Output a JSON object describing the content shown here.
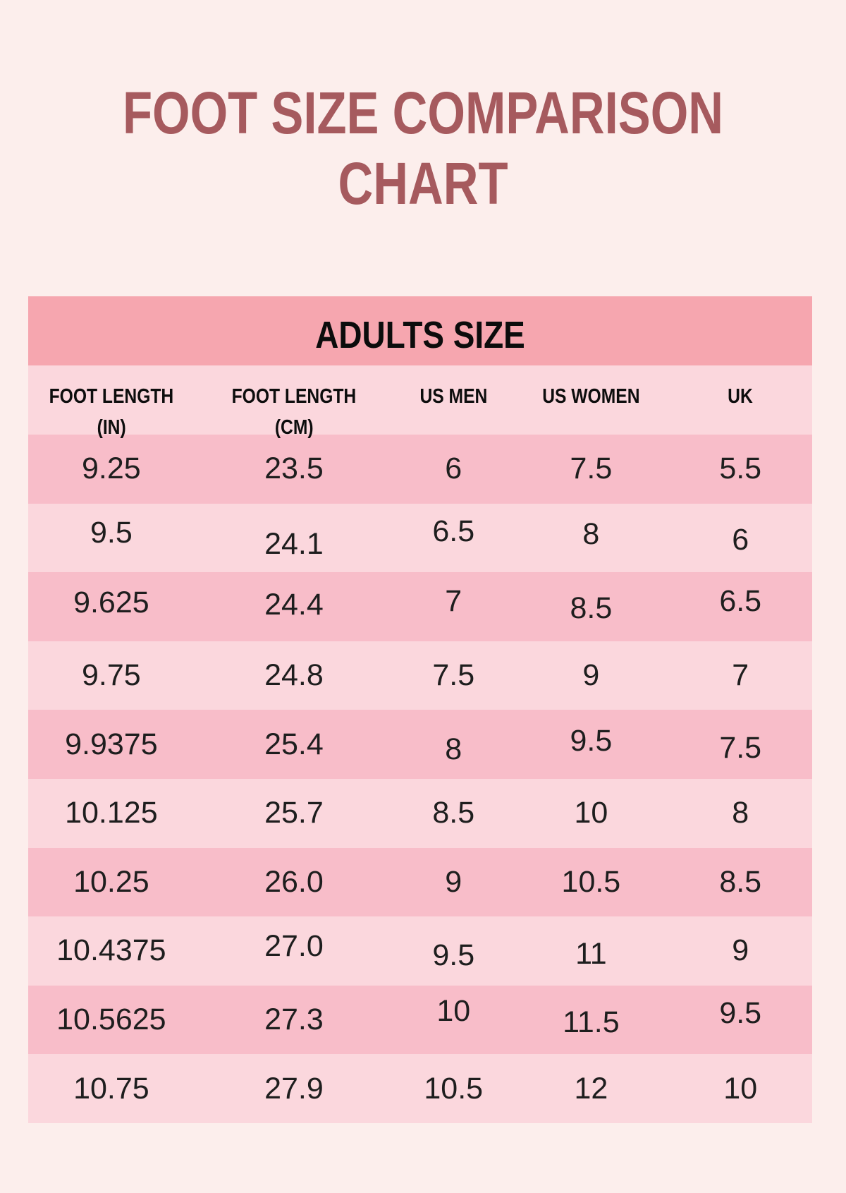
{
  "page": {
    "title_line1": "FOOT SIZE COMPARISON",
    "title_line2": "CHART"
  },
  "colors": {
    "page_background": "#FCEEEC",
    "title": "#A65A5E",
    "section_band": "#F6A6AF",
    "row_light": "#FBD7DD",
    "row_dark": "#F8BDC9",
    "header_text": "#0D0D0D",
    "data_text": "#1E1E1E"
  },
  "chart_data": {
    "type": "table",
    "title": "FOOT SIZE COMPARISON CHART",
    "section": "ADULTS SIZE",
    "columns": [
      {
        "label": "FOOT LENGTH",
        "unit": "(IN)"
      },
      {
        "label": "FOOT LENGTH",
        "unit": "(CM)"
      },
      {
        "label": "US MEN",
        "unit": ""
      },
      {
        "label": "US WOMEN",
        "unit": ""
      },
      {
        "label": "UK",
        "unit": ""
      }
    ],
    "rows": [
      [
        "9.25",
        "23.5",
        "6",
        "7.5",
        "5.5"
      ],
      [
        "9.5",
        "24.1",
        "6.5",
        "8",
        "6"
      ],
      [
        "9.625",
        "24.4",
        "7",
        "8.5",
        "6.5"
      ],
      [
        "9.75",
        "24.8",
        "7.5",
        "9",
        "7"
      ],
      [
        "9.9375",
        "25.4",
        "8",
        "9.5",
        "7.5"
      ],
      [
        "10.125",
        "25.7",
        "8.5",
        "10",
        "8"
      ],
      [
        "10.25",
        "26.0",
        "9",
        "10.5",
        "8.5"
      ],
      [
        "10.4375",
        "27.0",
        "9.5",
        "11",
        "9"
      ],
      [
        "10.5625",
        "27.3",
        "10",
        "11.5",
        "9.5"
      ],
      [
        "10.75",
        "27.9",
        "10.5",
        "12",
        "10"
      ]
    ]
  }
}
